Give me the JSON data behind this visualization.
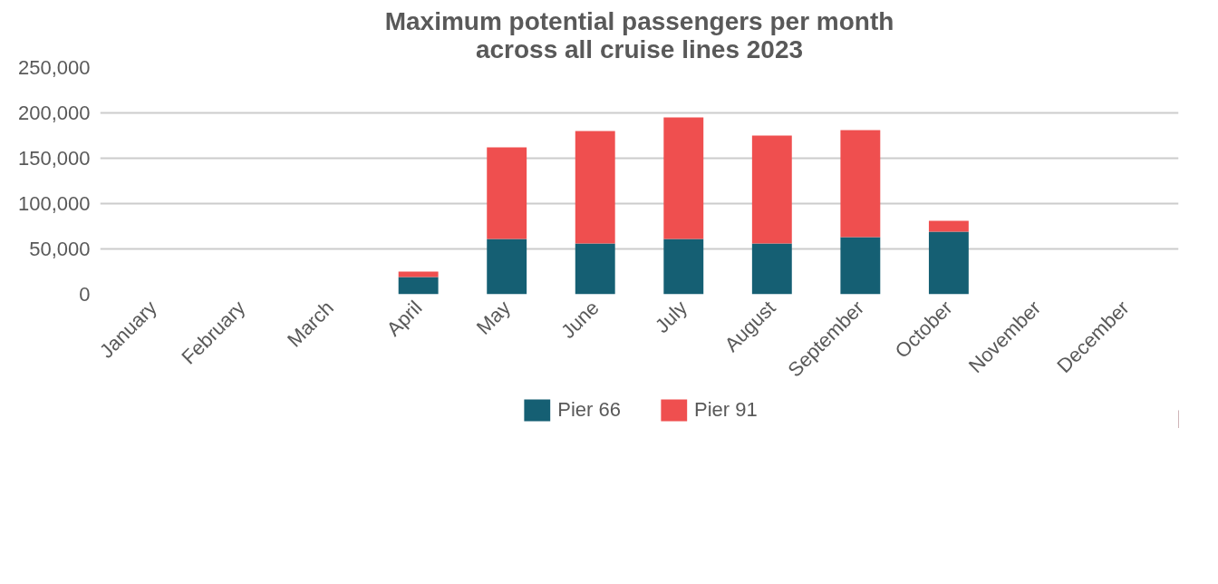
{
  "chart_data": {
    "type": "bar",
    "title": "Maximum potential passengers per month\nacross all cruise lines 2023",
    "stacked": true,
    "categories": [
      "January",
      "February",
      "March",
      "April",
      "May",
      "June",
      "July",
      "August",
      "September",
      "October",
      "November",
      "December"
    ],
    "series": [
      {
        "name": "Pier 66",
        "color": "#155f73",
        "values": [
          0,
          0,
          0,
          19000,
          61000,
          56000,
          61000,
          56000,
          63000,
          69000,
          0,
          0
        ]
      },
      {
        "name": "Pier 91",
        "color": "#ef4f4f",
        "values": [
          0,
          0,
          0,
          6000,
          101000,
          124000,
          134000,
          119000,
          118000,
          12000,
          0,
          0
        ]
      }
    ],
    "ylim": [
      0,
      250000
    ],
    "yticks": [
      {
        "value": 0,
        "label": "0"
      },
      {
        "value": 50000,
        "label": "50,000"
      },
      {
        "value": 100000,
        "label": "100,000"
      },
      {
        "value": 150000,
        "label": "150,000"
      },
      {
        "value": 200000,
        "label": "200,000"
      },
      {
        "value": 250000,
        "label": "250,000"
      }
    ],
    "grid": "y",
    "legend": "bottom"
  }
}
